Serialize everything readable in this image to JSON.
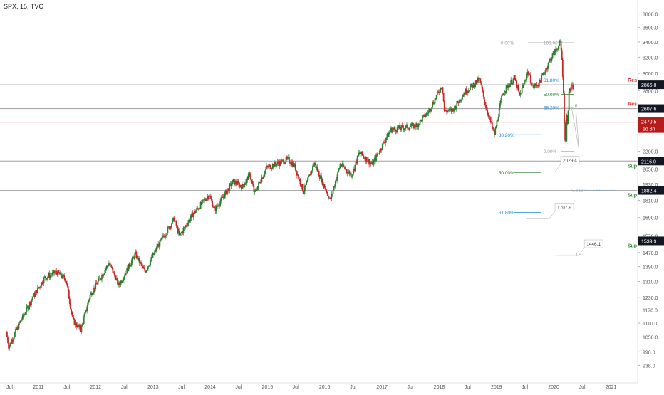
{
  "header": {
    "title": "SPX, 15, TVC"
  },
  "chart_data": {
    "type": "candlestick",
    "symbol": "SPX",
    "interval": "15",
    "source": "TVC",
    "y_scale": "log",
    "y_range": [
      900,
      3950
    ],
    "x_range": [
      "2010-05-01",
      "2021-06-20"
    ],
    "y_ticks": [
      938.0,
      990.0,
      1050.0,
      1110.0,
      1170.0,
      1230.0,
      1310.0,
      1390.0,
      1470.0,
      1570.0,
      1690.0,
      1810.0,
      1930.0,
      2050.0,
      2200.0,
      2800.0,
      3000.0,
      3200.0,
      3400.0,
      3600.0,
      3800.0
    ],
    "x_ticks": [
      {
        "label": "Jul",
        "date": "2010-07-01"
      },
      {
        "label": "2011",
        "date": "2011-01-01"
      },
      {
        "label": "Jul",
        "date": "2011-07-01"
      },
      {
        "label": "2012",
        "date": "2012-01-01"
      },
      {
        "label": "Jul",
        "date": "2012-07-01"
      },
      {
        "label": "2013",
        "date": "2013-01-01"
      },
      {
        "label": "Jul",
        "date": "2013-07-01"
      },
      {
        "label": "2014",
        "date": "2014-01-01"
      },
      {
        "label": "Jul",
        "date": "2014-07-01"
      },
      {
        "label": "2015",
        "date": "2015-01-01"
      },
      {
        "label": "Jul",
        "date": "2015-07-01"
      },
      {
        "label": "2016",
        "date": "2016-01-01"
      },
      {
        "label": "Jul",
        "date": "2016-07-01"
      },
      {
        "label": "2017",
        "date": "2017-01-01"
      },
      {
        "label": "Jul",
        "date": "2017-07-01"
      },
      {
        "label": "2018",
        "date": "2018-01-01"
      },
      {
        "label": "Jul",
        "date": "2018-07-01"
      },
      {
        "label": "2019",
        "date": "2019-01-01"
      },
      {
        "label": "Jul",
        "date": "2019-07-01"
      },
      {
        "label": "2020",
        "date": "2020-01-01"
      },
      {
        "label": "Jul",
        "date": "2020-07-01"
      },
      {
        "label": "2021",
        "date": "2021-01-01"
      },
      {
        "label": "Jul",
        "date": "2021-07-01"
      }
    ],
    "price_path": [
      [
        "2010-06-15",
        1070
      ],
      [
        "2010-07-01",
        1010
      ],
      [
        "2010-09-01",
        1100
      ],
      [
        "2010-12-01",
        1230
      ],
      [
        "2011-02-15",
        1330
      ],
      [
        "2011-05-01",
        1360
      ],
      [
        "2011-07-01",
        1320
      ],
      [
        "2011-08-15",
        1120
      ],
      [
        "2011-10-04",
        1080
      ],
      [
        "2011-12-01",
        1240
      ],
      [
        "2012-04-01",
        1410
      ],
      [
        "2012-06-01",
        1290
      ],
      [
        "2012-09-15",
        1460
      ],
      [
        "2012-11-15",
        1360
      ],
      [
        "2013-02-01",
        1500
      ],
      [
        "2013-05-20",
        1680
      ],
      [
        "2013-06-24",
        1570
      ],
      [
        "2013-09-15",
        1710
      ],
      [
        "2013-12-31",
        1850
      ],
      [
        "2014-02-03",
        1740
      ],
      [
        "2014-06-01",
        1950
      ],
      [
        "2014-08-01",
        1910
      ],
      [
        "2014-09-15",
        2010
      ],
      [
        "2014-10-15",
        1860
      ],
      [
        "2014-12-31",
        2060
      ],
      [
        "2015-05-20",
        2130
      ],
      [
        "2015-07-01",
        2070
      ],
      [
        "2015-08-24",
        1870
      ],
      [
        "2015-11-01",
        2100
      ],
      [
        "2016-02-11",
        1810
      ],
      [
        "2016-04-15",
        2090
      ],
      [
        "2016-06-27",
        2000
      ],
      [
        "2016-08-15",
        2190
      ],
      [
        "2016-11-04",
        2085
      ],
      [
        "2017-03-01",
        2395
      ],
      [
        "2017-08-15",
        2440
      ],
      [
        "2017-11-01",
        2580
      ],
      [
        "2018-01-26",
        2870
      ],
      [
        "2018-02-08",
        2580
      ],
      [
        "2018-04-02",
        2590
      ],
      [
        "2018-06-15",
        2780
      ],
      [
        "2018-09-20",
        2930
      ],
      [
        "2018-10-29",
        2640
      ],
      [
        "2018-12-24",
        2350
      ],
      [
        "2019-02-15",
        2780
      ],
      [
        "2019-04-30",
        2945
      ],
      [
        "2019-06-03",
        2740
      ],
      [
        "2019-07-26",
        3025
      ],
      [
        "2019-08-26",
        2840
      ],
      [
        "2019-10-03",
        2880
      ],
      [
        "2019-12-31",
        3230
      ],
      [
        "2020-02-19",
        3390
      ],
      [
        "2020-03-02",
        3090
      ],
      [
        "2020-03-09",
        2750
      ],
      [
        "2020-03-16",
        2400
      ],
      [
        "2020-03-23",
        2210
      ],
      [
        "2020-03-27",
        2540
      ],
      [
        "2020-04-03",
        2480
      ],
      [
        "2020-04-14",
        2790
      ],
      [
        "2020-04-17",
        2870
      ],
      [
        "2020-04-21",
        2740
      ],
      [
        "2020-04-24",
        2836
      ],
      [
        "2020-05-01",
        2830
      ],
      [
        "2020-05-04",
        2842
      ]
    ],
    "horizontal_levels": [
      {
        "price": 2866.8,
        "label": "2866.8",
        "tag": "Res",
        "tag_color": "#d32f2f",
        "line_color": "#9e9e9e",
        "label_bg": "#131722"
      },
      {
        "price": 2607.6,
        "label": "2607.6",
        "tag": "Res",
        "tag_color": "#d32f2f",
        "line_color": "#9e9e9e",
        "label_bg": "#131722"
      },
      {
        "price": 2116.0,
        "label": "2116.0",
        "tag": "Sup",
        "tag_color": "#2e7d32",
        "line_color": "#9e9e9e",
        "label_bg": "#131722"
      },
      {
        "price": 1882.4,
        "label": "1882.4",
        "tag": "Sup",
        "tag_color": "#2e7d32",
        "line_color": "#9e9e9e",
        "label_bg": "#131722"
      },
      {
        "price": 1539.9,
        "label": "1539.9",
        "tag": "Sup",
        "tag_color": "#2e7d32",
        "line_color": "#9e9e9e",
        "label_bg": "#131722"
      }
    ],
    "current_price": {
      "price": 2470.5,
      "label": "2470.5",
      "countdown": "1d 8h",
      "color": "#b71c1c",
      "line_color": "#e57373"
    },
    "fib_short": {
      "date_from": "2020-02-19",
      "date_to": "2020-04-24",
      "levels": [
        {
          "ratio_label": "0.00%",
          "price": 3390,
          "color": "#9e9e9e"
        },
        {
          "ratio_label": "100.00%",
          "price": 3390,
          "color": "#9e9e9e"
        },
        {
          "ratio_label": "61.80%",
          "price": 2920,
          "color": "#1e88e5"
        },
        {
          "ratio_label": "50.00%",
          "price": 2760,
          "color": "#2e7d32"
        },
        {
          "ratio_label": "38.20%",
          "price": 2620,
          "color": "#1e88e5"
        },
        {
          "ratio_label": "0.00%",
          "price": 2200,
          "color": "#9e9e9e"
        }
      ]
    },
    "fib_long": {
      "date_from": "2019-01-01",
      "date_to": "2019-10-15",
      "levels": [
        {
          "ratio_label": "38.20%",
          "price": 2350,
          "color": "#1e88e5"
        },
        {
          "ratio_label": "50.00%",
          "price": 2020,
          "color": "#2e7d32"
        },
        {
          "ratio_label": "61.80%",
          "price": 1725,
          "color": "#1e88e5"
        }
      ]
    },
    "price_callouts": [
      {
        "text": "2029.4",
        "date": "2020-02-15",
        "price": 2120
      },
      {
        "text": "1707.9",
        "date": "2020-01-10",
        "price": 1760
      },
      {
        "text": "1446.1",
        "date": "2020-07-15",
        "price": 1520
      }
    ],
    "projection_labels": [
      {
        "text": "0",
        "date": "2020-05-15",
        "price": 2640,
        "color": "#9e9e9e"
      },
      {
        "text": "0.618",
        "date": "2020-04-25",
        "price": 1885,
        "color": "#64b5f6"
      },
      {
        "text": "1",
        "date": "2020-05-20",
        "price": 1460,
        "color": "#9e9e9e"
      }
    ],
    "projection_path": [
      [
        "2020-04-24",
        2620
      ],
      [
        "2020-06-10",
        2220
      ],
      [
        "2020-05-20",
        2640
      ]
    ]
  }
}
